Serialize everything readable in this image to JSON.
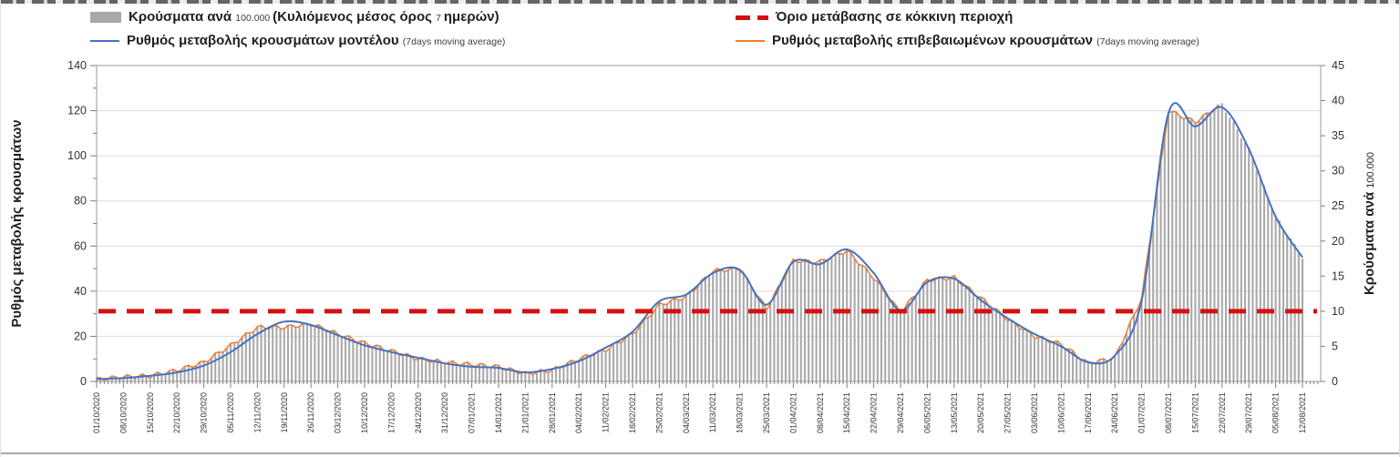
{
  "page": {
    "background": "#ffffff",
    "top_artifact": "clipped-dark-dashed-row",
    "bottom_separator_color": "#a6a6a6"
  },
  "legend": {
    "items": [
      {
        "id": "cases-bars",
        "swatch": "bar",
        "color": "#a8a8a8",
        "segments": [
          {
            "text": "Κρούσματα ανά ",
            "style": "b"
          },
          {
            "text": "100.000 ",
            "style": "s"
          },
          {
            "text": "(Κυλιόμενος μέσος όρος ",
            "style": "b"
          },
          {
            "text": "7 ",
            "style": "s"
          },
          {
            "text": "ημερών)",
            "style": "b"
          }
        ]
      },
      {
        "id": "model-line",
        "swatch": "line",
        "color": "#4472c4",
        "segments": [
          {
            "text": "Ρυθμός μεταβολής κρουσμάτων μοντέλου ",
            "style": "b"
          },
          {
            "text": "(7days moving average)",
            "style": "s"
          }
        ]
      },
      {
        "id": "red-threshold",
        "swatch": "dash",
        "color": "#d31111",
        "segments": [
          {
            "text": "Όριο μετάβασης σε κόκκινη περιοχή",
            "style": "b"
          }
        ]
      },
      {
        "id": "confirmed-line",
        "swatch": "line",
        "color": "#ed7d31",
        "segments": [
          {
            "text": "Ρυθμός μεταβολής επιβεβαιωμένων κρουσμάτων ",
            "style": "b"
          },
          {
            "text": "(7days moving average)",
            "style": "s"
          }
        ]
      }
    ]
  },
  "chart_data": {
    "type": "combo",
    "subtype": "bar+line+line+threshold",
    "x_dates": [
      "01/10/2020",
      "08/10/2020",
      "15/10/2020",
      "22/10/2020",
      "29/10/2020",
      "05/11/2020",
      "12/11/2020",
      "19/11/2020",
      "26/11/2020",
      "03/12/2020",
      "10/12/2020",
      "17/12/2020",
      "24/12/2020",
      "31/12/2020",
      "07/01/2021",
      "14/01/2021",
      "21/01/2021",
      "28/01/2021",
      "04/02/2021",
      "11/02/2021",
      "18/02/2021",
      "25/02/2021",
      "04/03/2021",
      "11/03/2021",
      "18/03/2021",
      "25/03/2021",
      "01/04/2021",
      "08/04/2021",
      "15/04/2021",
      "22/04/2021",
      "29/04/2021",
      "06/05/2021",
      "13/05/2021",
      "20/05/2021",
      "27/05/2021",
      "03/06/2021",
      "10/06/2021",
      "17/06/2021",
      "24/06/2021",
      "01/07/2021",
      "08/07/2021",
      "15/07/2021",
      "22/07/2021",
      "29/07/2021",
      "05/08/2021",
      "12/08/2021"
    ],
    "series": [
      {
        "name": "Κρούσματα ανά 100.000 (Κυλιόμενος μέσος όρος 7 ημερών)",
        "type": "bar",
        "axis": "right",
        "color": "#a9a9a9",
        "values": [
          0.3,
          0.6,
          0.8,
          1.6,
          2.7,
          5.1,
          7.7,
          7.7,
          8.2,
          6.8,
          5.5,
          4.3,
          3.2,
          2.7,
          2.4,
          2.1,
          1.1,
          1.6,
          3.2,
          4.5,
          6.8,
          10.9,
          12.1,
          15.8,
          16.1,
          10.3,
          17.2,
          17.0,
          18.6,
          14.8,
          9.8,
          14.5,
          14.8,
          11.9,
          8.8,
          6.4,
          5.3,
          2.6,
          3.4,
          11.9,
          38.6,
          37.0,
          39.5,
          33.1,
          23.5,
          17.7
        ]
      },
      {
        "name": "Ρυθμός μεταβολής κρουσμάτων μοντέλου (7days moving average)",
        "type": "line",
        "axis": "left",
        "color": "#4472c4",
        "values": [
          1,
          1.5,
          2.5,
          4,
          7,
          13,
          21,
          26.5,
          25,
          20.5,
          16,
          13,
          10.5,
          8,
          6.5,
          6,
          4,
          5.5,
          9,
          15,
          22,
          35.5,
          38.5,
          48,
          49.5,
          34,
          53,
          52,
          58.5,
          48,
          31.5,
          44,
          45.5,
          36,
          28,
          21,
          15.5,
          8.5,
          11.5,
          36,
          119,
          113,
          121.5,
          103,
          73,
          55
        ]
      },
      {
        "name": "Ρυθμός μεταβολής επιβεβαιωμένων κρουσμάτων (7days moving average)",
        "type": "line",
        "axis": "left",
        "color": "#ed7d31",
        "values": [
          1,
          2,
          2.5,
          5,
          8.5,
          16,
          24,
          24,
          25.5,
          21,
          17,
          13.5,
          10,
          8.5,
          7.5,
          6.5,
          3.5,
          5,
          10,
          14,
          21,
          34,
          37.5,
          49,
          50,
          32,
          53.5,
          53,
          58,
          46,
          30.5,
          45,
          46,
          37,
          27.5,
          20,
          16.5,
          8,
          10.5,
          37,
          120,
          115,
          123,
          null,
          null,
          null
        ]
      },
      {
        "name": "Όριο μετάβασης σε κόκκινη περιοχή",
        "type": "threshold",
        "axis": "right",
        "color": "#d31111",
        "value": 10
      }
    ],
    "left_axis": {
      "title": "Ρυθμός μεταβολής κρουσμάτων",
      "min": 0,
      "max": 140,
      "step": 20,
      "minor_step": 10
    },
    "right_axis": {
      "title_main": "Κρούσματα ανά ",
      "title_small": "100.000",
      "min": 0,
      "max": 45,
      "step": 5
    },
    "grid": "horizontal-major-left",
    "legend_position": "top",
    "x_tick_minor": "daily",
    "bars_per_week": 7
  }
}
